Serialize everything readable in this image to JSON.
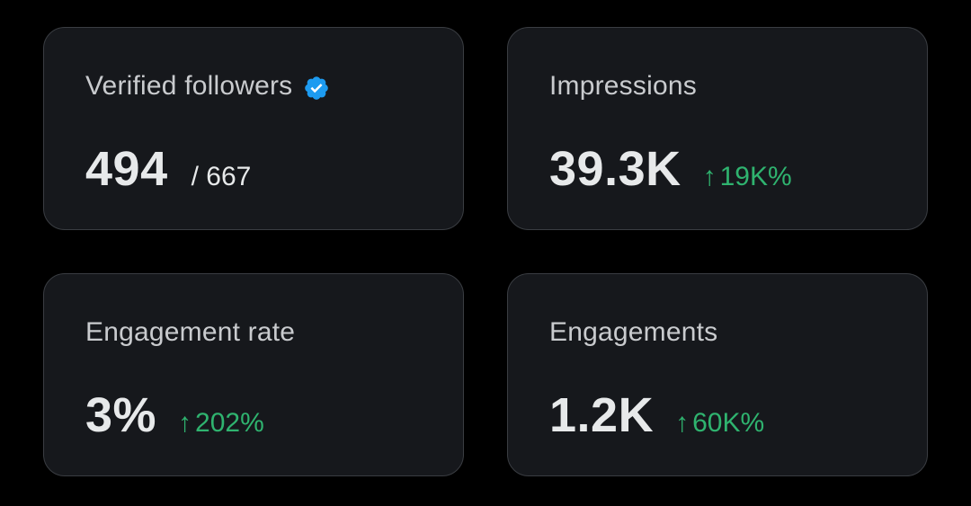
{
  "cards": [
    {
      "label": "Verified followers",
      "icon": "verified-badge-icon",
      "value": "494",
      "sub": "/ 667"
    },
    {
      "label": "Impressions",
      "value": "39.3K",
      "delta_arrow": "↑",
      "delta": "19K%"
    },
    {
      "label": "Engagement rate",
      "value": "3%",
      "delta_arrow": "↑",
      "delta": "202%"
    },
    {
      "label": "Engagements",
      "value": "1.2K",
      "delta_arrow": "↑",
      "delta": "60K%"
    }
  ],
  "colors": {
    "background": "#000000",
    "card": "#16181c",
    "card_border": "#3a3d42",
    "label": "#c9cbce",
    "value": "#e7e9ea",
    "positive": "#2fb36f",
    "verified": "#1d9bf0"
  }
}
